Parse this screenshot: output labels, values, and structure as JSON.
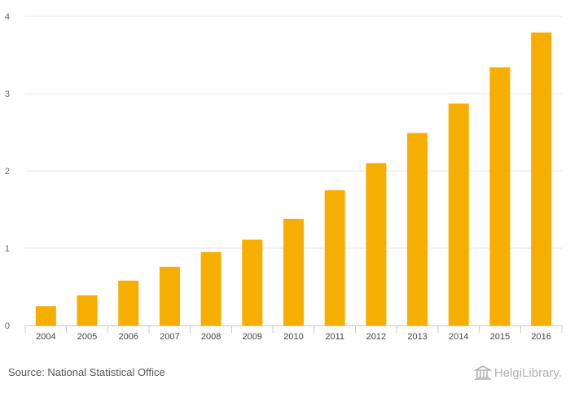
{
  "chart_data": {
    "type": "bar",
    "title": "",
    "xlabel": "",
    "ylabel": "",
    "categories": [
      "2004",
      "2005",
      "2006",
      "2007",
      "2008",
      "2009",
      "2010",
      "2011",
      "2012",
      "2013",
      "2014",
      "2015",
      "2016"
    ],
    "values": [
      0.25,
      0.39,
      0.58,
      0.76,
      0.95,
      1.11,
      1.38,
      1.75,
      2.1,
      2.49,
      2.87,
      3.34,
      3.79
    ],
    "ylim": [
      0,
      4
    ],
    "yticks": [
      "0",
      "1",
      "2",
      "3",
      "4"
    ],
    "grid": true,
    "bar_color": "#f6ae00"
  },
  "footer": {
    "source": "Source: National Statistical Office",
    "logo_text": "HelgiLibrary."
  }
}
